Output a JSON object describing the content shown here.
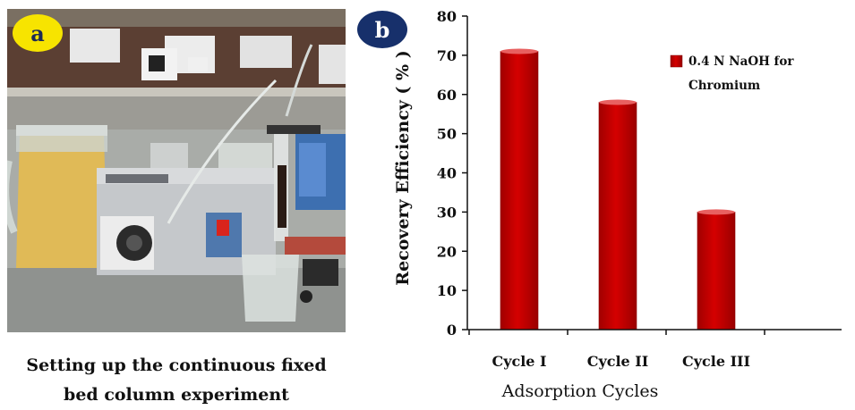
{
  "panel_a": {
    "badge": "a",
    "caption_line1": "Setting up the continuous fixed",
    "caption_line2": "bed column experiment"
  },
  "panel_b": {
    "badge": "b"
  },
  "colors": {
    "bar": "#cc0000",
    "bar_top": "#e86060",
    "badge_a_bg": "#f7e400",
    "badge_b_bg": "#17306b"
  },
  "chart_data": {
    "type": "bar",
    "categories": [
      "Cycle I",
      "Cycle II",
      "Cycle III"
    ],
    "series": [
      {
        "name": "0.4 N NaOH for Chromium",
        "values": [
          71,
          58,
          30
        ]
      }
    ],
    "xlabel": "Adsorption Cycles",
    "ylabel": "Recovery Efficiency ( % )",
    "ylim": [
      0,
      80
    ],
    "yticks": [
      "0",
      "10",
      "20",
      "30",
      "40",
      "50",
      "60",
      "70",
      "80"
    ],
    "legend_line1": "0.4 N NaOH for",
    "legend_line2": "Chromium",
    "legend_position": "top-right",
    "grid": false
  }
}
